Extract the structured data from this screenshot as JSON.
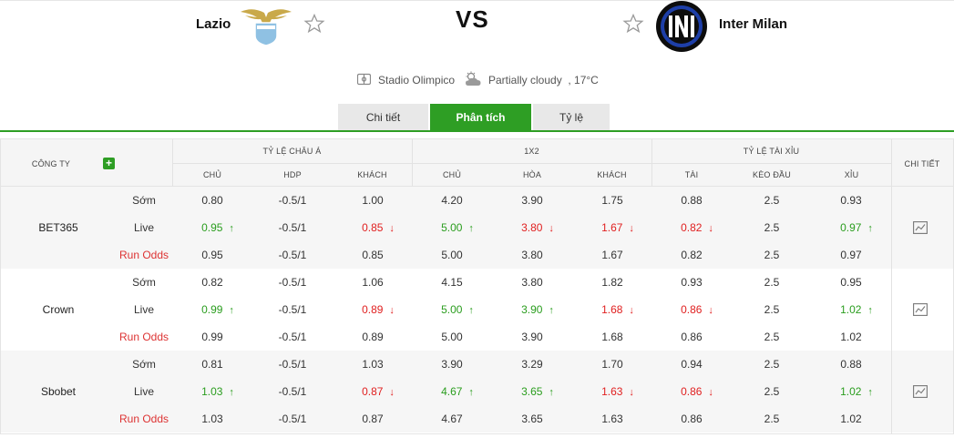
{
  "match": {
    "home_team": "Lazio",
    "away_team": "Inter Milan",
    "vs_label": "VS",
    "stadium": "Stadio Olimpico",
    "weather": "Partially cloudy  , 17°C"
  },
  "tabs": [
    {
      "label": "Chi tiết",
      "active": false
    },
    {
      "label": "Phân tích",
      "active": true
    },
    {
      "label": "Tỷ lệ",
      "active": false
    }
  ],
  "colors": {
    "accent": "#2e9e24",
    "up": "#2a9d1e",
    "down": "#e02020",
    "run_odds": "#d33333"
  },
  "table": {
    "headers": {
      "company": "CÔNG TY",
      "asian": "TỶ LỆ CHÂU Á",
      "x12": "1X2",
      "ou": "TỶ LỆ TÀI XỈU",
      "detail": "CHI TIẾT",
      "asian_cols": [
        "CHỦ",
        "HDP",
        "KHÁCH"
      ],
      "x12_cols": [
        "CHỦ",
        "HÒA",
        "KHÁCH"
      ],
      "ou_cols": [
        "TÀI",
        "KÈO ĐẦU",
        "XỈU"
      ]
    },
    "companies": [
      {
        "name": "BET365",
        "rows": [
          {
            "label": "Sớm",
            "values": [
              "0.80",
              "-0.5/1",
              "1.00",
              "4.20",
              "3.90",
              "1.75",
              "0.88",
              "2.5",
              "0.93"
            ],
            "trend": [
              "",
              "",
              "",
              "",
              "",
              "",
              "",
              "",
              ""
            ]
          },
          {
            "label": "Live",
            "values": [
              "0.95",
              "-0.5/1",
              "0.85",
              "5.00",
              "3.80",
              "1.67",
              "0.82",
              "2.5",
              "0.97"
            ],
            "trend": [
              "up",
              "",
              "down",
              "up",
              "down",
              "down",
              "down",
              "",
              "up"
            ]
          },
          {
            "label": "Run Odds",
            "values": [
              "0.95",
              "-0.5/1",
              "0.85",
              "5.00",
              "3.80",
              "1.67",
              "0.82",
              "2.5",
              "0.97"
            ],
            "trend": [
              "",
              "",
              "",
              "",
              "",
              "",
              "",
              "",
              ""
            ]
          }
        ]
      },
      {
        "name": "Crown",
        "rows": [
          {
            "label": "Sớm",
            "values": [
              "0.82",
              "-0.5/1",
              "1.06",
              "4.15",
              "3.80",
              "1.82",
              "0.93",
              "2.5",
              "0.95"
            ],
            "trend": [
              "",
              "",
              "",
              "",
              "",
              "",
              "",
              "",
              ""
            ]
          },
          {
            "label": "Live",
            "values": [
              "0.99",
              "-0.5/1",
              "0.89",
              "5.00",
              "3.90",
              "1.68",
              "0.86",
              "2.5",
              "1.02"
            ],
            "trend": [
              "up",
              "",
              "down",
              "up",
              "up",
              "down",
              "down",
              "",
              "up"
            ]
          },
          {
            "label": "Run Odds",
            "values": [
              "0.99",
              "-0.5/1",
              "0.89",
              "5.00",
              "3.90",
              "1.68",
              "0.86",
              "2.5",
              "1.02"
            ],
            "trend": [
              "",
              "",
              "",
              "",
              "",
              "",
              "",
              "",
              ""
            ]
          }
        ]
      },
      {
        "name": "Sbobet",
        "rows": [
          {
            "label": "Sớm",
            "values": [
              "0.81",
              "-0.5/1",
              "1.03",
              "3.90",
              "3.29",
              "1.70",
              "0.94",
              "2.5",
              "0.88"
            ],
            "trend": [
              "",
              "",
              "",
              "",
              "",
              "",
              "",
              "",
              ""
            ]
          },
          {
            "label": "Live",
            "values": [
              "1.03",
              "-0.5/1",
              "0.87",
              "4.67",
              "3.65",
              "1.63",
              "0.86",
              "2.5",
              "1.02"
            ],
            "trend": [
              "up",
              "",
              "down",
              "up",
              "up",
              "down",
              "down",
              "",
              "up"
            ]
          },
          {
            "label": "Run Odds",
            "values": [
              "1.03",
              "-0.5/1",
              "0.87",
              "4.67",
              "3.65",
              "1.63",
              "0.86",
              "2.5",
              "1.02"
            ],
            "trend": [
              "",
              "",
              "",
              "",
              "",
              "",
              "",
              "",
              ""
            ]
          }
        ]
      }
    ]
  }
}
